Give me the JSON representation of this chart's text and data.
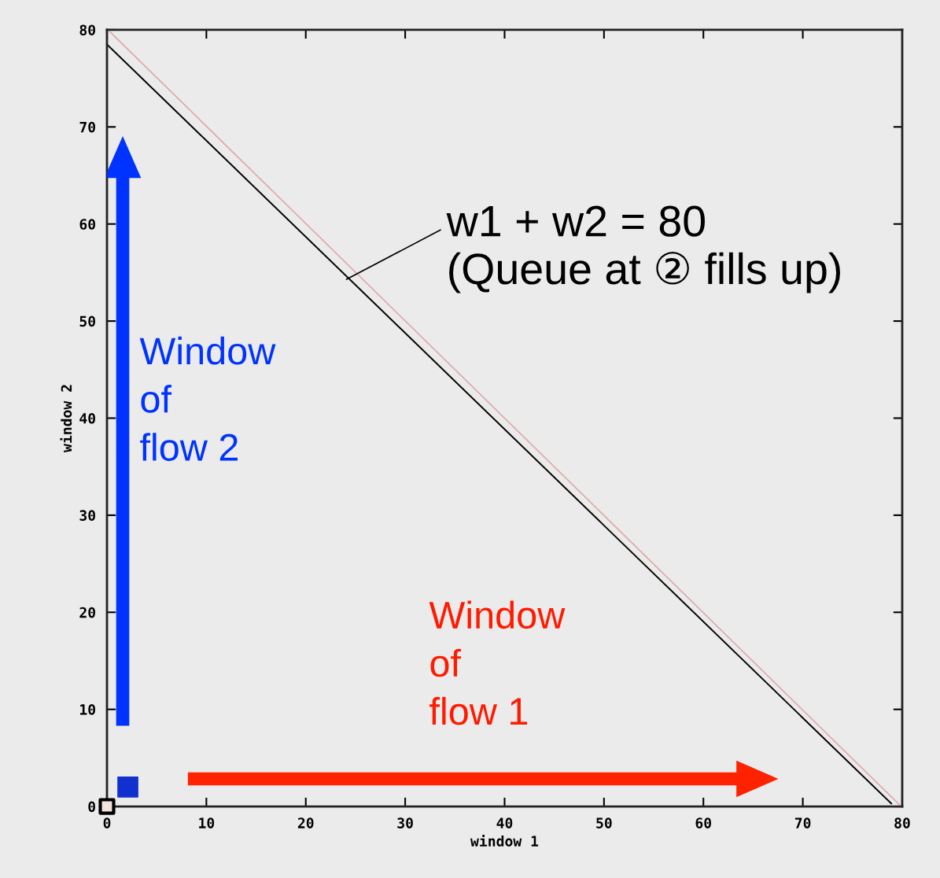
{
  "chart_data": {
    "type": "line",
    "xlabel": "window 1",
    "ylabel": "window 2",
    "xlim": [
      0,
      80
    ],
    "ylim": [
      0,
      80
    ],
    "xticks": [
      0,
      10,
      20,
      30,
      40,
      50,
      60,
      70,
      80
    ],
    "yticks": [
      0,
      10,
      20,
      30,
      40,
      50,
      60,
      70,
      80
    ],
    "grid": false,
    "series": [
      {
        "color": "#e0a8a8",
        "x": [
          0.3,
          79.7
        ],
        "values": [
          79.8,
          0.2
        ]
      },
      {
        "color": "#000000",
        "x": [
          0,
          78.9
        ],
        "values": [
          78.5,
          0.3
        ]
      },
      {
        "type": "scatter",
        "color": "#1030d0",
        "marker": "square",
        "x": [
          2.1
        ],
        "values": [
          2.0
        ]
      },
      {
        "type": "scatter",
        "color": "#000000",
        "marker": "square",
        "x": [
          0
        ],
        "values": [
          0
        ]
      }
    ],
    "annotations": [
      {
        "text": "w1 + w2 = 80\n(Queue at ② fills up)",
        "x": 24.1,
        "y": 54.3
      },
      "Window\nof\nflow 2",
      "Window\nof\nflow 1"
    ]
  }
}
